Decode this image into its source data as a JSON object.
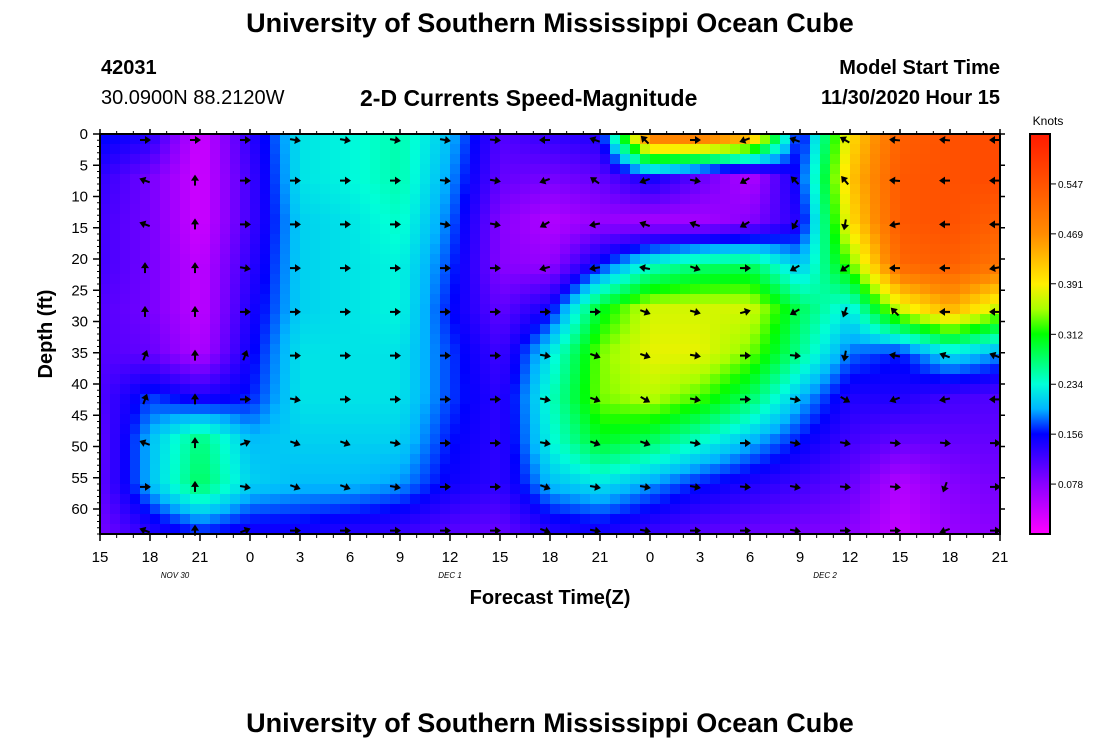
{
  "header": {
    "title": "University of Southern Mississippi Ocean Cube",
    "station_id": "42031",
    "station_coords": "30.0900N 88.2120W",
    "chart_title": "2-D Currents Speed-Magnitude",
    "model_label": "Model Start Time",
    "model_time": "11/30/2020 Hour 15"
  },
  "footer": {
    "title": "University of Southern Mississippi Ocean Cube"
  },
  "chart_data": {
    "type": "heatmap",
    "title": "2-D Currents Speed-Magnitude",
    "xlabel": "Forecast Time(Z)",
    "ylabel": "Depth (ft)",
    "x_hours": [
      0,
      3,
      6,
      9,
      12,
      15,
      18,
      21,
      24,
      27,
      30,
      33,
      36,
      39,
      42,
      45,
      48,
      51,
      54
    ],
    "x_tick_labels": [
      "15",
      "18",
      "21",
      "0",
      "3",
      "6",
      "9",
      "12",
      "15",
      "18",
      "21",
      "0",
      "3",
      "6",
      "9",
      "12",
      "15",
      "18",
      "21"
    ],
    "date_labels": [
      {
        "text": "NOV 30",
        "hour": 4.5
      },
      {
        "text": "DEC 1",
        "hour": 21
      },
      {
        "text": "DEC 2",
        "hour": 43.5
      }
    ],
    "xlim": [
      0,
      54
    ],
    "y_ticks": [
      0,
      5,
      10,
      15,
      20,
      25,
      30,
      35,
      40,
      45,
      50,
      55,
      60
    ],
    "ylim": [
      0,
      64
    ],
    "colorbar": {
      "unit": "Knots",
      "min": 0.0,
      "max": 0.625,
      "tick_labels": [
        "0.078",
        "0.156",
        "0.234",
        "0.312",
        "0.391",
        "0.469",
        "0.547"
      ],
      "tick_values": [
        0.078,
        0.156,
        0.234,
        0.312,
        0.391,
        0.469,
        0.547
      ]
    },
    "grid_hours": [
      0,
      3,
      6,
      9,
      12,
      15,
      18,
      21,
      24,
      27,
      30,
      33,
      36,
      39,
      42,
      45,
      48,
      51,
      54
    ],
    "grid_depths": [
      0,
      7,
      14,
      21,
      28,
      35,
      42,
      49,
      56,
      63
    ],
    "speed_knots": [
      [
        0.16,
        0.14,
        0.03,
        0.13,
        0.22,
        0.23,
        0.25,
        0.2,
        0.11,
        0.13,
        0.14,
        0.52,
        0.53,
        0.48,
        0.14,
        0.4,
        0.53,
        0.55,
        0.56
      ],
      [
        0.13,
        0.09,
        0.03,
        0.12,
        0.22,
        0.23,
        0.25,
        0.19,
        0.1,
        0.09,
        0.1,
        0.15,
        0.1,
        0.05,
        0.16,
        0.42,
        0.54,
        0.55,
        0.56
      ],
      [
        0.12,
        0.09,
        0.03,
        0.12,
        0.21,
        0.22,
        0.24,
        0.18,
        0.08,
        0.05,
        0.07,
        0.06,
        0.06,
        0.08,
        0.14,
        0.4,
        0.54,
        0.55,
        0.53
      ],
      [
        0.12,
        0.09,
        0.04,
        0.13,
        0.21,
        0.22,
        0.23,
        0.17,
        0.08,
        0.07,
        0.16,
        0.24,
        0.27,
        0.28,
        0.2,
        0.33,
        0.52,
        0.53,
        0.5
      ],
      [
        0.11,
        0.09,
        0.04,
        0.14,
        0.21,
        0.22,
        0.23,
        0.16,
        0.1,
        0.15,
        0.3,
        0.37,
        0.37,
        0.37,
        0.28,
        0.22,
        0.37,
        0.44,
        0.36
      ],
      [
        0.11,
        0.1,
        0.05,
        0.15,
        0.22,
        0.22,
        0.22,
        0.17,
        0.12,
        0.22,
        0.34,
        0.38,
        0.38,
        0.34,
        0.26,
        0.18,
        0.16,
        0.22,
        0.19
      ],
      [
        0.11,
        0.17,
        0.14,
        0.16,
        0.22,
        0.22,
        0.22,
        0.17,
        0.13,
        0.24,
        0.34,
        0.36,
        0.33,
        0.28,
        0.2,
        0.14,
        0.14,
        0.12,
        0.11
      ],
      [
        0.1,
        0.2,
        0.27,
        0.2,
        0.21,
        0.21,
        0.21,
        0.16,
        0.13,
        0.23,
        0.3,
        0.28,
        0.24,
        0.2,
        0.16,
        0.12,
        0.1,
        0.1,
        0.1
      ],
      [
        0.1,
        0.2,
        0.28,
        0.21,
        0.2,
        0.2,
        0.19,
        0.15,
        0.13,
        0.2,
        0.22,
        0.19,
        0.16,
        0.14,
        0.12,
        0.1,
        0.05,
        0.08,
        0.09
      ],
      [
        0.09,
        0.14,
        0.17,
        0.15,
        0.15,
        0.14,
        0.13,
        0.11,
        0.1,
        0.14,
        0.15,
        0.13,
        0.11,
        0.1,
        0.09,
        0.08,
        0.04,
        0.07,
        0.08
      ]
    ],
    "arrow_hours": [
      3,
      6,
      9,
      12,
      15,
      18,
      21,
      24,
      27,
      30,
      33,
      36,
      39,
      42,
      45,
      48,
      51,
      54
    ],
    "arrow_depths": [
      0,
      6.5,
      13.5,
      20.5,
      27.5,
      34.5,
      41.5,
      48.5,
      55.5,
      62.5
    ],
    "arrow_dirs_deg": [
      [
        0,
        0,
        0,
        10,
        10,
        10,
        10,
        5,
        180,
        200,
        225,
        0,
        160,
        200,
        210,
        185,
        185,
        180
      ],
      [
        200,
        270,
        0,
        0,
        0,
        0,
        5,
        10,
        160,
        215,
        160,
        10,
        150,
        225,
        230,
        185,
        180,
        180
      ],
      [
        200,
        270,
        0,
        0,
        0,
        0,
        10,
        10,
        150,
        170,
        200,
        200,
        150,
        120,
        100,
        170,
        180,
        180
      ],
      [
        270,
        270,
        10,
        0,
        0,
        0,
        0,
        0,
        165,
        170,
        190,
        20,
        0,
        150,
        145,
        180,
        180,
        170
      ],
      [
        270,
        270,
        0,
        0,
        0,
        0,
        0,
        0,
        0,
        0,
        20,
        15,
        345,
        150,
        110,
        225,
        180,
        180
      ],
      [
        290,
        270,
        290,
        0,
        0,
        0,
        0,
        0,
        10,
        20,
        20,
        10,
        0,
        5,
        100,
        190,
        200,
        200
      ],
      [
        290,
        270,
        0,
        10,
        0,
        0,
        0,
        0,
        10,
        20,
        30,
        10,
        0,
        10,
        30,
        160,
        170,
        180
      ],
      [
        200,
        270,
        340,
        20,
        20,
        10,
        0,
        0,
        10,
        20,
        20,
        10,
        0,
        10,
        10,
        5,
        5,
        0
      ],
      [
        0,
        270,
        10,
        20,
        20,
        10,
        0,
        0,
        20,
        10,
        10,
        10,
        5,
        10,
        5,
        5,
        110,
        0
      ],
      [
        200,
        270,
        340,
        0,
        0,
        0,
        0,
        0,
        20,
        10,
        10,
        0,
        0,
        10,
        0,
        0,
        160,
        0
      ]
    ]
  },
  "colors": {
    "frame": "#000000",
    "background": "#ffffff",
    "arrow": "#000000"
  }
}
